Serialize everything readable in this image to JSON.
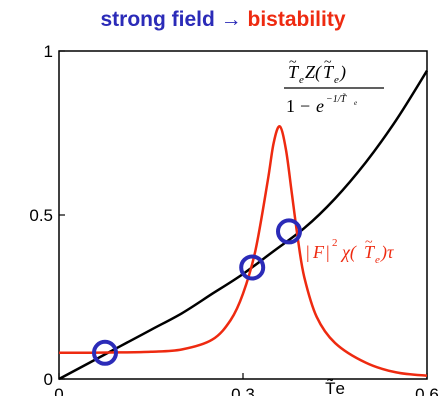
{
  "title": {
    "left": "strong field",
    "arrow": "→",
    "right": "bistability",
    "left_color": "#2b2bb8",
    "right_color": "#ee2a10"
  },
  "chart_data": {
    "type": "line",
    "xlim": [
      0,
      0.6
    ],
    "ylim": [
      0,
      1
    ],
    "x_ticks": [
      0,
      0.3,
      0.6
    ],
    "x_tick_labels": [
      "0",
      "0.3",
      "0.6"
    ],
    "y_ticks": [
      0,
      0.5,
      1
    ],
    "y_tick_labels": [
      "0",
      "0.5",
      "1"
    ],
    "xlabel": "T̃e",
    "grid": false,
    "series": [
      {
        "name": "T̃e Z(T̃e) / (1 − e^(−1/T̃e))",
        "color": "#000000",
        "x": [
          0,
          0.05,
          0.1,
          0.15,
          0.2,
          0.25,
          0.3,
          0.35,
          0.4,
          0.45,
          0.5,
          0.55,
          0.6
        ],
        "y": [
          0,
          0.05,
          0.1,
          0.15,
          0.2,
          0.26,
          0.32,
          0.39,
          0.46,
          0.55,
          0.66,
          0.79,
          0.94
        ]
      },
      {
        "name": "|F|² χ(T̃e) τ",
        "color": "#ee2a10",
        "x": [
          0,
          0.05,
          0.1,
          0.15,
          0.2,
          0.25,
          0.28,
          0.3,
          0.32,
          0.34,
          0.35,
          0.36,
          0.37,
          0.38,
          0.39,
          0.4,
          0.42,
          0.45,
          0.5,
          0.55,
          0.6
        ],
        "y": [
          0.08,
          0.08,
          0.081,
          0.083,
          0.09,
          0.12,
          0.18,
          0.26,
          0.39,
          0.6,
          0.72,
          0.77,
          0.7,
          0.56,
          0.42,
          0.31,
          0.19,
          0.11,
          0.05,
          0.02,
          0.01
        ]
      }
    ],
    "annotations": [
      {
        "type": "circle",
        "x": 0.075,
        "y": 0.08,
        "color": "#2b2bb8"
      },
      {
        "type": "circle",
        "x": 0.315,
        "y": 0.34,
        "color": "#2b2bb8"
      },
      {
        "type": "circle",
        "x": 0.375,
        "y": 0.45,
        "color": "#2b2bb8"
      }
    ]
  }
}
